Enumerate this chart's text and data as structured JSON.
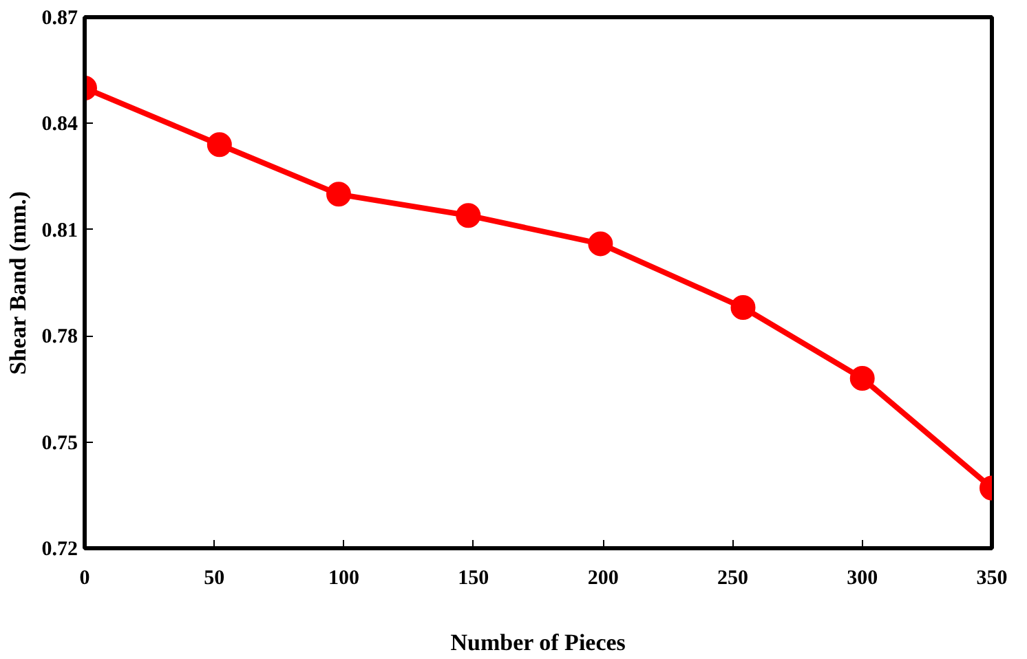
{
  "chart_data": {
    "type": "line",
    "xlabel": "Number of Pieces",
    "ylabel": "Shear Band (mm.)",
    "x": [
      0,
      52,
      98,
      148,
      199,
      254,
      300,
      350
    ],
    "series": [
      {
        "color": "#ff0000",
        "values": [
          0.85,
          0.834,
          0.82,
          0.814,
          0.806,
          0.788,
          0.768,
          0.737
        ]
      }
    ],
    "xlim": [
      0,
      350
    ],
    "xticks": [
      0,
      50,
      100,
      150,
      200,
      250,
      300,
      350
    ],
    "ylim": [
      0.72,
      0.87
    ],
    "yticks": [
      {
        "value": 0.72,
        "label": "0.72"
      },
      {
        "value": 0.75,
        "label": "0.75"
      },
      {
        "value": 0.78,
        "label": "0.78"
      },
      {
        "value": 0.81,
        "label": "0.81"
      },
      {
        "value": 0.84,
        "label": "0.84"
      },
      {
        "value": 0.87,
        "label": "0.87"
      }
    ],
    "grid": false,
    "marker": "circle",
    "line_style": "solid"
  }
}
